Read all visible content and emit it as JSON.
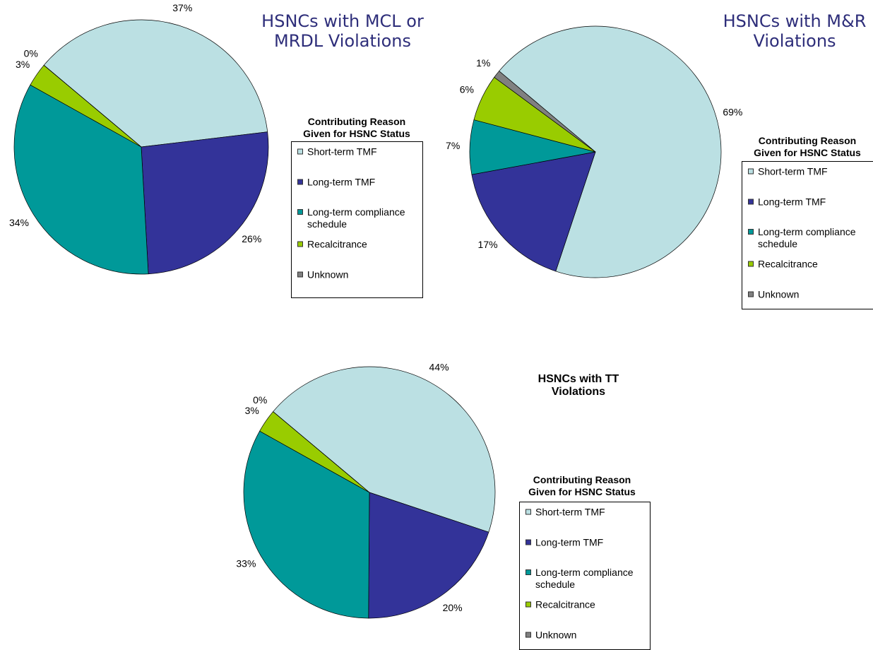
{
  "chart_data": [
    {
      "type": "pie",
      "title": "HSNCs with MCL or MRDL Violations",
      "legend_title": "Contributing Reason Given for HSNC Status",
      "categories": [
        "Short-term TMF",
        "Long-term TMF",
        "Long-term compliance schedule",
        "Recalcitrance",
        "Unknown"
      ],
      "values": [
        37,
        26,
        34,
        3,
        0
      ],
      "value_labels": [
        "37%",
        "26%",
        "34%",
        "3%",
        "0%"
      ],
      "colors": [
        "#bbe0e3",
        "#333399",
        "#009999",
        "#99cc00",
        "#808080"
      ]
    },
    {
      "type": "pie",
      "title": "HSNCs with M&R Violations",
      "legend_title": "Contributing Reason Given for HSNC Status",
      "categories": [
        "Short-term TMF",
        "Long-term TMF",
        "Long-term compliance schedule",
        "Recalcitrance",
        "Unknown"
      ],
      "values": [
        69,
        17,
        7,
        6,
        1
      ],
      "value_labels": [
        "69%",
        "17%",
        "7%",
        "6%",
        "1%"
      ],
      "colors": [
        "#bbe0e3",
        "#333399",
        "#009999",
        "#99cc00",
        "#808080"
      ]
    },
    {
      "type": "pie",
      "title": "HSNCs with TT Violations",
      "legend_title": "Contributing Reason Given for HSNC Status",
      "categories": [
        "Short-term TMF",
        "Long-term TMF",
        "Long-term compliance schedule",
        "Recalcitrance",
        "Unknown"
      ],
      "values": [
        44,
        20,
        33,
        3,
        0
      ],
      "value_labels": [
        "44%",
        "20%",
        "33%",
        "3%",
        "0%"
      ],
      "colors": [
        "#bbe0e3",
        "#333399",
        "#009999",
        "#99cc00",
        "#808080"
      ]
    }
  ]
}
